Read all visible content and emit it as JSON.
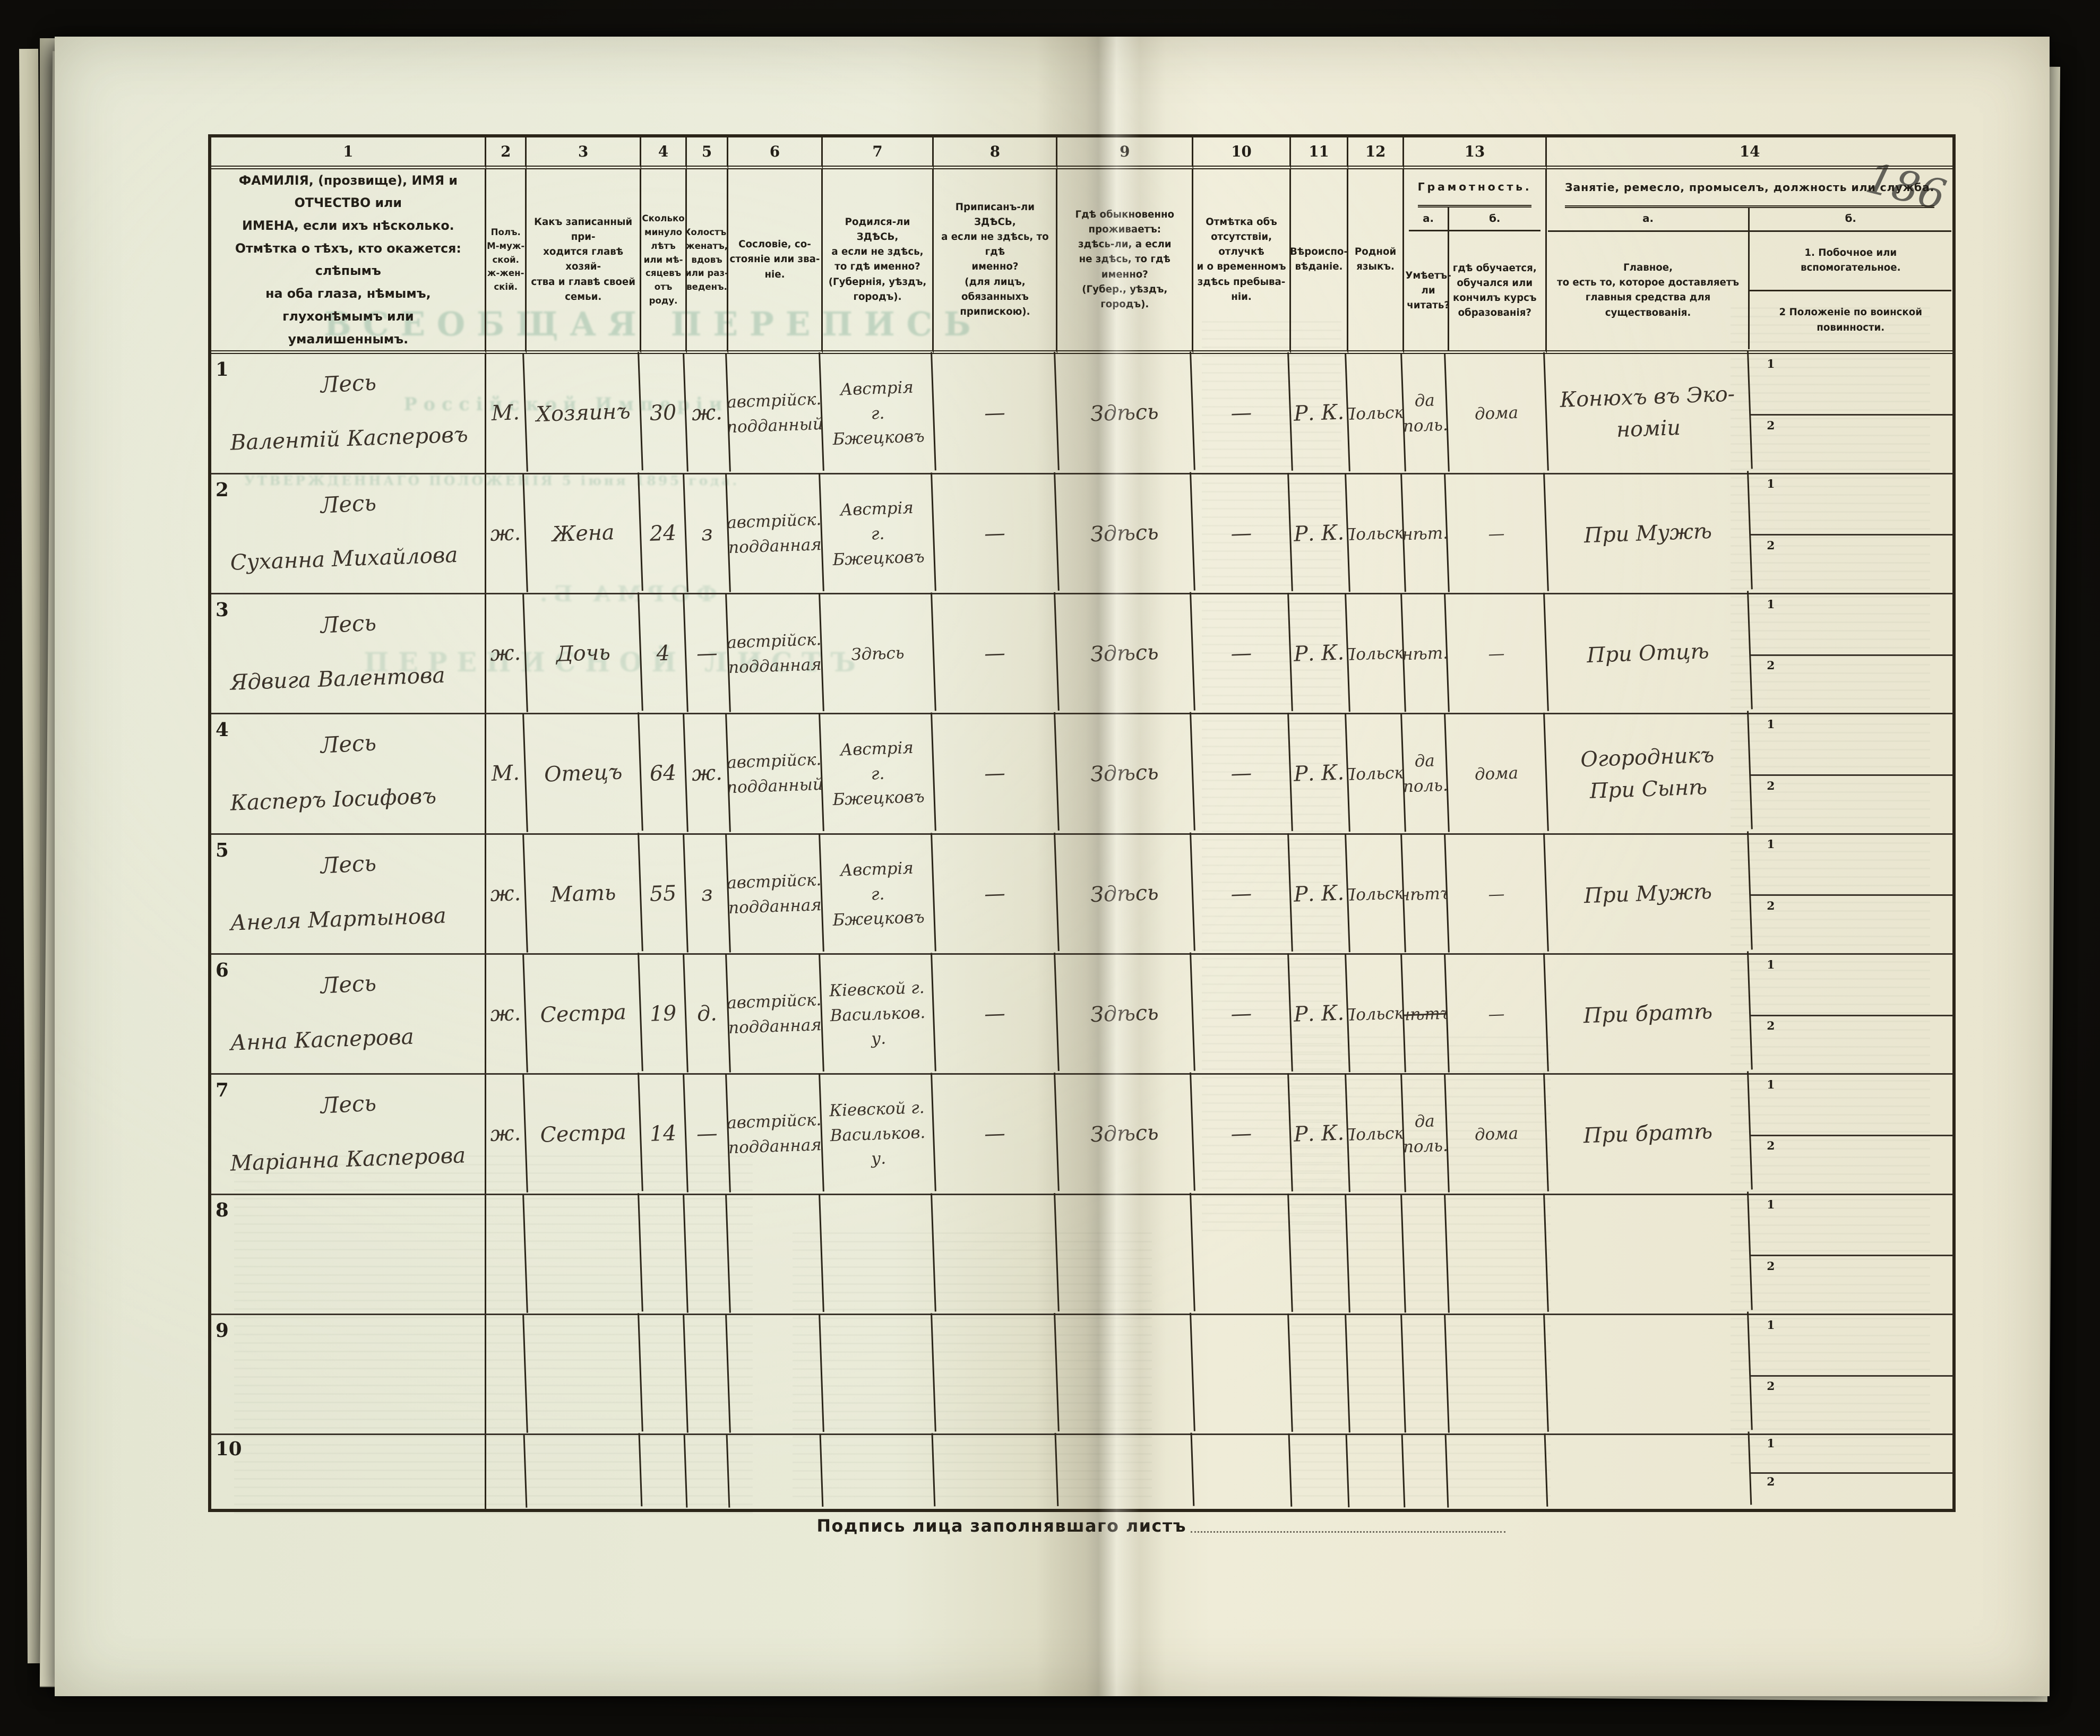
{
  "page": {
    "page_number": "186",
    "footer_label": "Подпись лица заполнявшаго листъ",
    "bleedthrough": {
      "title": "ВСЕОБЩАЯ ПЕРЕПИСЬ",
      "subtitle": "Россійской Имперіи",
      "approval_line": "УТВЕРЖДЕННАГО ПОЛОЖЕНІЯ 5 іюня 1895 года.",
      "sheet_title": "ПЕРЕПИСНОЙ ЛИСТЪ",
      "form_label": "ФОРМА Б."
    }
  },
  "table": {
    "column_numbers": [
      "1",
      "2",
      "3",
      "4",
      "5",
      "6",
      "7",
      "8",
      "9",
      "10",
      "11",
      "12",
      "13",
      "14"
    ],
    "headers": {
      "col1": "ФАМИЛІЯ, (прозвище), ИМЯ и ОТЧЕСТВО или\nИМЕНА, если ихъ нѣсколько.\nОтмѣтка о тѣхъ, кто окажется: слѣпымъ\nна оба глаза, нѣмымъ, глухонѣмымъ или\nумалишеннымъ.",
      "col2": "Полъ.\nМ-муж-\nской.\nж-жен-\nскій.",
      "col3": "Какъ записанный при-\nходится главѣ хозяй-\nства и главѣ своей\nсемьи.",
      "col4": "Сколько\nминуло\nлѣтъ\nили мѣ-\nсяцевъ\nотъ роду.",
      "col5": "Холостъ,\nженатъ,\nвдовъ\nили раз-\nведенъ.",
      "col6": "Сословіе, со-\nстояніе или зва-\nніе.",
      "col7": "Родился-ли ЗДѢСЬ,\nа если не здѣсь,\nто гдѣ именно?\n(Губернія, уѣздъ, городъ).",
      "col8": "Приписанъ-ли ЗДѢСЬ,\nа если не здѣсь, то гдѣ\nименно?\n(для лицъ, обязанныхъ\nприпискою).",
      "col9": "Гдѣ обыкновенно\nпроживаетъ:\nздѣсь-ли, а если\nне здѣсь, то гдѣ\nименно?\n(Губер., уѣздъ, городъ).",
      "col10": "Отмѣтка объ\nотсутствіи, отлучкѣ\nи о временномъ\nздѣсь пребыва-\nніи.",
      "col11": "Вѣроиспо-\nвѣданіе.",
      "col12": "Родной\nязыкъ.",
      "col13_title": "Грамотность.",
      "col13a_label": "а.",
      "col13b_label": "б.",
      "col13a_text": "Умѣетъ-\nли\nчитать?",
      "col13b_text": "гдѣ обучается,\nобучался или\nкончилъ курсъ\nобразованія?",
      "col14_title": "Занятіе, ремесло, промыселъ, должность или служба.",
      "col14a_label": "а.",
      "col14b_label": "б.",
      "col14a_text": "Главное,\nто есть то, которое доставляетъ\nглавныя средства для существованія.",
      "col14b_item1": "1.  Побочное или  вспомогательное.",
      "col14b_item2": "2   Положеніе по воинской повинности."
    },
    "sub_labels": [
      "1",
      "2"
    ],
    "rows": [
      {
        "num": "1",
        "surname": "Лесь",
        "given": "Валентій Касперовъ",
        "sex": "М.",
        "relation": "Хозяинъ",
        "age": "30",
        "marital": "ж.",
        "estate": "австрійск.\nподданный",
        "born": "Австрія\nг. Бжецковъ",
        "registered": "—",
        "residence": "Здѣсь",
        "absence": "—",
        "religion": "Р. К.",
        "language": "Польск.",
        "literacy": "да\nполь.",
        "education": "дома",
        "occupation": "Конюхъ въ Эко-\nноміи"
      },
      {
        "num": "2",
        "surname": "Лесь",
        "given": "Суханна Михайлова",
        "sex": "ж.",
        "relation": "Жена",
        "age": "24",
        "marital": "з",
        "estate": "австрійск.\nподданная",
        "born": "Австрія\nг. Бжецковъ",
        "registered": "—",
        "residence": "Здѣсь",
        "absence": "—",
        "religion": "Р. К.",
        "language": "Польск.",
        "literacy": "нѣт.",
        "education": "—",
        "occupation": "При Мужѣ"
      },
      {
        "num": "3",
        "surname": "Лесь",
        "given": "Ядвига Валентова",
        "sex": "ж.",
        "relation": "Дочь",
        "age": "4",
        "marital": "—",
        "estate": "австрійск.\nподданная",
        "born": "Здѣсь",
        "registered": "—",
        "residence": "Здѣсь",
        "absence": "—",
        "religion": "Р. К.",
        "language": "Польск.",
        "literacy": "нѣт.",
        "education": "—",
        "occupation": "При Отцѣ"
      },
      {
        "num": "4",
        "surname": "Лесь",
        "given": "Касперъ Іосифовъ",
        "sex": "М.",
        "relation": "Отецъ",
        "age": "64",
        "marital": "ж.",
        "estate": "австрійск.\nподданный",
        "born": "Австрія\nг. Бжецковъ",
        "registered": "—",
        "residence": "Здѣсь",
        "absence": "—",
        "religion": "Р. К.",
        "language": "Польск.",
        "literacy": "да\nполь.",
        "education": "дома",
        "occupation": "Огородникъ\nПри Сынѣ"
      },
      {
        "num": "5",
        "surname": "Лесь",
        "given": "Анеля Мартынова",
        "sex": "ж.",
        "relation": "Мать",
        "age": "55",
        "marital": "з",
        "estate": "австрійск.\nподданная",
        "born": "Австрія\nг. Бжецковъ",
        "registered": "—",
        "residence": "Здѣсь",
        "absence": "—",
        "religion": "Р. К.",
        "language": "Польск.",
        "literacy": "нѣтъ",
        "education": "—",
        "occupation": "При Мужѣ"
      },
      {
        "num": "6",
        "surname": "Лесь",
        "given": "Анна Касперова",
        "sex": "ж.",
        "relation": "Сестра",
        "age": "19",
        "marital": "д.",
        "estate": "австрійск.\nподданная",
        "born": "Кіевской г.\nВасильков.\nу.",
        "registered": "—",
        "residence": "Здѣсь",
        "absence": "—",
        "religion": "Р. К.",
        "language": "Польск.",
        "literacy": "нѣтъ",
        "literacy_strike": true,
        "education": "—",
        "occupation": "При братѣ"
      },
      {
        "num": "7",
        "surname": "Лесь",
        "given": "Маріанна Касперова",
        "sex": "ж.",
        "relation": "Сестра",
        "age": "14",
        "marital": "—",
        "estate": "австрійск.\nподданная",
        "born": "Кіевской г.\nВасильков.\nу.",
        "registered": "—",
        "residence": "Здѣсь",
        "absence": "—",
        "religion": "Р. К.",
        "language": "Польск.",
        "literacy": "да\nполь.",
        "education": "дома",
        "occupation": "При братѣ"
      },
      {
        "num": "8",
        "surname": "",
        "given": "",
        "sex": "",
        "relation": "",
        "age": "",
        "marital": "",
        "estate": "",
        "born": "",
        "registered": "",
        "residence": "",
        "absence": "",
        "religion": "",
        "language": "",
        "literacy": "",
        "education": "",
        "occupation": ""
      },
      {
        "num": "9",
        "surname": "",
        "given": "",
        "sex": "",
        "relation": "",
        "age": "",
        "marital": "",
        "estate": "",
        "born": "",
        "registered": "",
        "residence": "",
        "absence": "",
        "religion": "",
        "language": "",
        "literacy": "",
        "education": "",
        "occupation": ""
      },
      {
        "num": "10",
        "surname": "",
        "given": "",
        "sex": "",
        "relation": "",
        "age": "",
        "marital": "",
        "estate": "",
        "born": "",
        "registered": "",
        "residence": "",
        "absence": "",
        "religion": "",
        "language": "",
        "literacy": "",
        "education": "",
        "occupation": ""
      }
    ]
  }
}
